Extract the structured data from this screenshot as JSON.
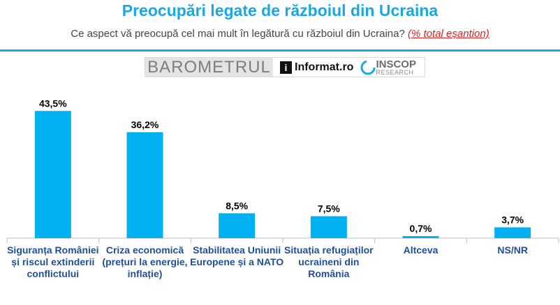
{
  "header": {
    "title": "Preocupări legate de războiul din Ucraina",
    "subtitle": "Ce aspect vă preocupă cel mai mult în legătură cu războiul din Ucraina?",
    "subtitle_note": "(% total eșantion)"
  },
  "logos": {
    "barometrul": "BAROMETRUL",
    "informat": "Informat.ro",
    "inscop_name": "INSCOP",
    "inscop_sub": "RESEARCH"
  },
  "colors": {
    "accent": "#1aa7e4",
    "bar": "#00b0f0",
    "category_text": "#1f4e9b",
    "note": "#e02020"
  },
  "chart_data": {
    "type": "bar",
    "categories": [
      "Siguranța României și riscul extinderii conflictului",
      "Criza economică (prețuri la energie, inflație)",
      "Stabilitatea Uniunii Europene și a NATO",
      "Situația refugiaților ucraineni din România",
      "Altceva",
      "NS/NR"
    ],
    "values": [
      43.5,
      36.2,
      8.5,
      7.5,
      0.7,
      3.7
    ],
    "value_labels": [
      "43,5%",
      "36,2%",
      "8,5%",
      "7,5%",
      "0,7%",
      "3,7%"
    ],
    "unit": "%",
    "ylim": [
      0,
      50
    ],
    "grid": false,
    "legend": "none"
  }
}
